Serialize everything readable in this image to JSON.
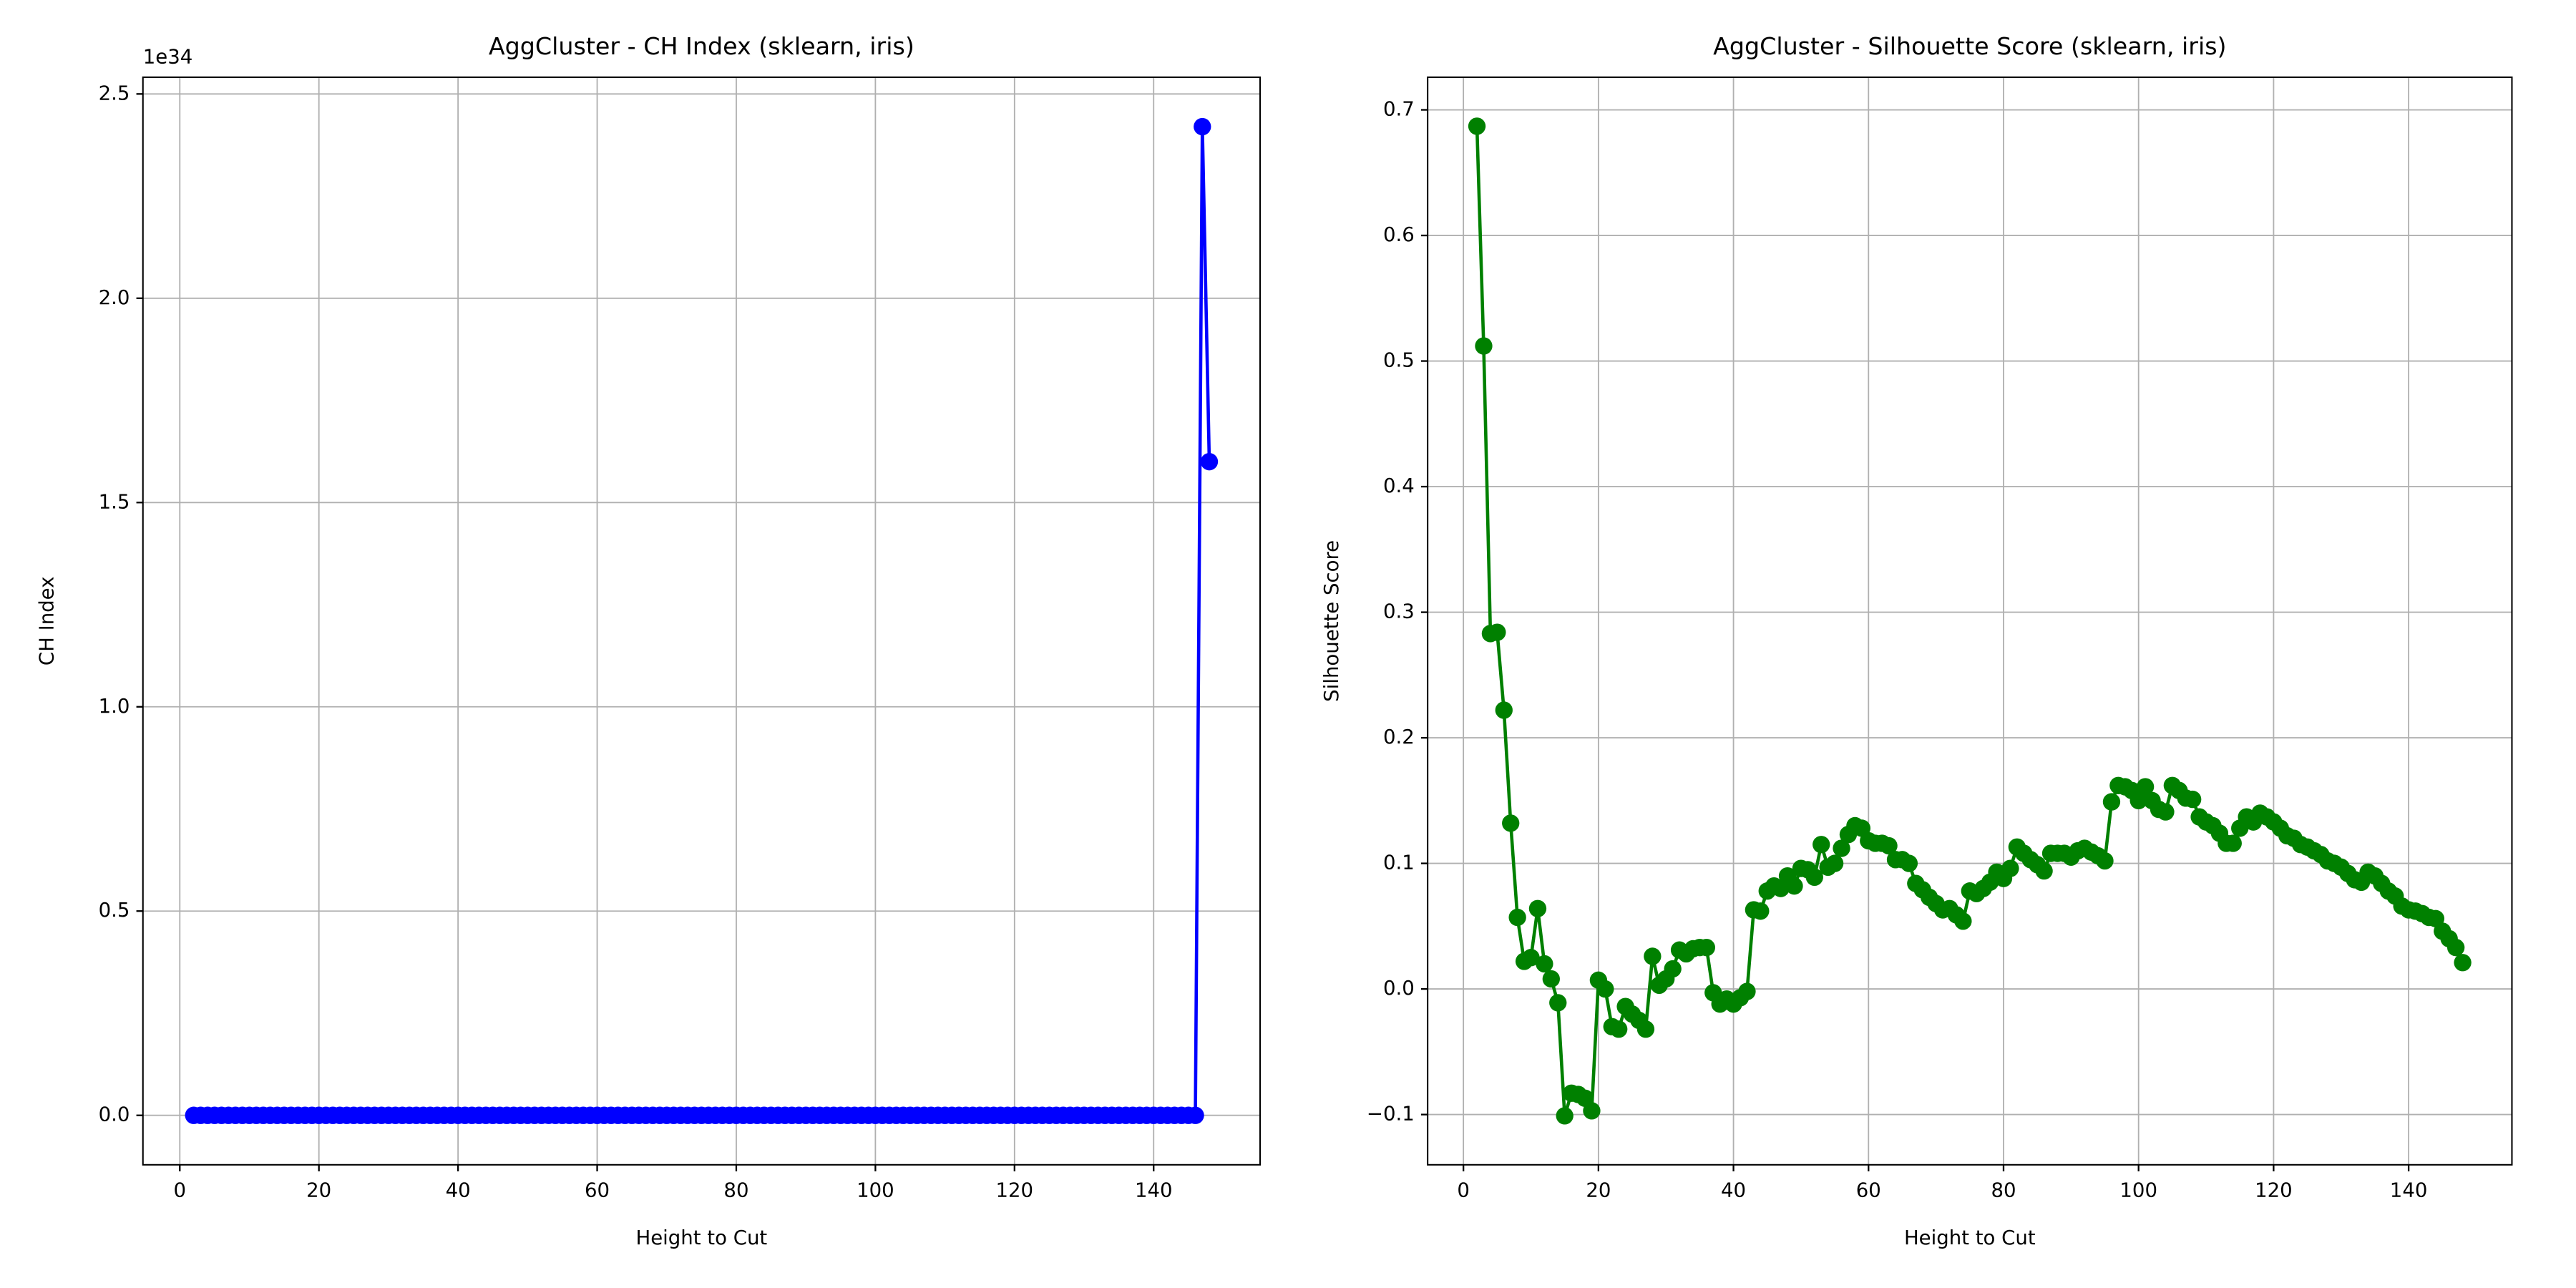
{
  "chart_data": [
    {
      "type": "line",
      "title": "AggCluster - CH Index (sklearn, iris)",
      "xlabel": "Height to Cut",
      "ylabel": "CH Index",
      "y_offset_text": "1e34",
      "color": "#0000ff",
      "grid": true,
      "marker": true,
      "xlim": [
        -5.3,
        155.3
      ],
      "xticks": [
        0,
        20,
        40,
        60,
        80,
        100,
        120,
        140
      ],
      "ylim": [
        -0.121,
        2.541
      ],
      "yticks": [
        {
          "value": 0,
          "label": "0.0"
        },
        0.5,
        {
          "value": 1,
          "label": "1.0"
        },
        1.5,
        {
          "value": 2,
          "label": "2.0"
        },
        2.5
      ],
      "x": [
        2,
        3,
        4,
        5,
        6,
        7,
        8,
        9,
        10,
        11,
        12,
        13,
        14,
        15,
        16,
        17,
        18,
        19,
        20,
        21,
        22,
        23,
        24,
        25,
        26,
        27,
        28,
        29,
        30,
        31,
        32,
        33,
        34,
        35,
        36,
        37,
        38,
        39,
        40,
        41,
        42,
        43,
        44,
        45,
        46,
        47,
        48,
        49,
        50,
        51,
        52,
        53,
        54,
        55,
        56,
        57,
        58,
        59,
        60,
        61,
        62,
        63,
        64,
        65,
        66,
        67,
        68,
        69,
        70,
        71,
        72,
        73,
        74,
        75,
        76,
        77,
        78,
        79,
        80,
        81,
        82,
        83,
        84,
        85,
        86,
        87,
        88,
        89,
        90,
        91,
        92,
        93,
        94,
        95,
        96,
        97,
        98,
        99,
        100,
        101,
        102,
        103,
        104,
        105,
        106,
        107,
        108,
        109,
        110,
        111,
        112,
        113,
        114,
        115,
        116,
        117,
        118,
        119,
        120,
        121,
        122,
        123,
        124,
        125,
        126,
        127,
        128,
        129,
        130,
        131,
        132,
        133,
        134,
        135,
        136,
        137,
        138,
        139,
        140,
        141,
        142,
        143,
        144,
        145,
        146,
        147,
        148
      ],
      "values": [
        0,
        0,
        0,
        0,
        0,
        0,
        0,
        0,
        0,
        0,
        0,
        0,
        0,
        0,
        0,
        0,
        0,
        0,
        0,
        0,
        0,
        0,
        0,
        0,
        0,
        0,
        0,
        0,
        0,
        0,
        0,
        0,
        0,
        0,
        0,
        0,
        0,
        0,
        0,
        0,
        0,
        0,
        0,
        0,
        0,
        0,
        0,
        0,
        0,
        0,
        0,
        0,
        0,
        0,
        0,
        0,
        0,
        0,
        0,
        0,
        0,
        0,
        0,
        0,
        0,
        0,
        0,
        0,
        0,
        0,
        0,
        0,
        0,
        0,
        0,
        0,
        0,
        0,
        0,
        0,
        0,
        0,
        0,
        0,
        0,
        0,
        0,
        0,
        0,
        0,
        0,
        0,
        0,
        0,
        0,
        0,
        0,
        0,
        0,
        0,
        0,
        0,
        0,
        0,
        0,
        0,
        0,
        0,
        0,
        0,
        0,
        0,
        0,
        0,
        0,
        0,
        0,
        0,
        0,
        0,
        0,
        0,
        0,
        0,
        0,
        0,
        0,
        0,
        0,
        0,
        0,
        0,
        0,
        0,
        0,
        0,
        0,
        0,
        0,
        0,
        0,
        0,
        0,
        0,
        0,
        2.42,
        1.6
      ]
    },
    {
      "type": "line",
      "title": "AggCluster - Silhouette Score (sklearn, iris)",
      "xlabel": "Height to Cut",
      "ylabel": "Silhouette Score",
      "color": "#008000",
      "grid": true,
      "marker": true,
      "xlim": [
        -5.3,
        155.3
      ],
      "xticks": [
        0,
        20,
        40,
        60,
        80,
        100,
        120,
        140
      ],
      "ylim": [
        -0.14,
        0.726
      ],
      "yticks": [
        {
          "value": -0.1,
          "label": "−0.1"
        },
        {
          "value": 0,
          "label": "0.0"
        },
        0.1,
        0.2,
        0.3,
        0.4,
        0.5,
        0.6,
        0.7
      ],
      "x": [
        2,
        3,
        4,
        5,
        6,
        7,
        8,
        9,
        10,
        11,
        12,
        13,
        14,
        15,
        16,
        17,
        18,
        19,
        20,
        21,
        22,
        23,
        24,
        25,
        26,
        27,
        28,
        29,
        30,
        31,
        32,
        33,
        34,
        35,
        36,
        37,
        38,
        39,
        40,
        41,
        42,
        43,
        44,
        45,
        46,
        47,
        48,
        49,
        50,
        51,
        52,
        53,
        54,
        55,
        56,
        57,
        58,
        59,
        60,
        61,
        62,
        63,
        64,
        65,
        66,
        67,
        68,
        69,
        70,
        71,
        72,
        73,
        74,
        75,
        76,
        77,
        78,
        79,
        80,
        81,
        82,
        83,
        84,
        85,
        86,
        87,
        88,
        89,
        90,
        91,
        92,
        93,
        94,
        95,
        96,
        97,
        98,
        99,
        100,
        101,
        102,
        103,
        104,
        105,
        106,
        107,
        108,
        109,
        110,
        111,
        112,
        113,
        114,
        115,
        116,
        117,
        118,
        119,
        120,
        121,
        122,
        123,
        124,
        125,
        126,
        127,
        128,
        129,
        130,
        131,
        132,
        133,
        134,
        135,
        136,
        137,
        138,
        139,
        140,
        141,
        142,
        143,
        144,
        145,
        146,
        147,
        148
      ],
      "values": [
        0.687,
        0.512,
        0.283,
        0.284,
        0.222,
        0.132,
        0.057,
        0.022,
        0.025,
        0.064,
        0.02,
        0.008,
        -0.011,
        -0.101,
        -0.083,
        -0.084,
        -0.087,
        -0.097,
        0.007,
        0.0,
        -0.03,
        -0.032,
        -0.014,
        -0.02,
        -0.025,
        -0.032,
        0.026,
        0.003,
        0.008,
        0.016,
        0.031,
        0.028,
        0.032,
        0.033,
        0.033,
        -0.003,
        -0.012,
        -0.008,
        -0.012,
        -0.007,
        -0.002,
        0.063,
        0.062,
        0.078,
        0.082,
        0.08,
        0.09,
        0.082,
        0.096,
        0.095,
        0.089,
        0.115,
        0.097,
        0.1,
        0.112,
        0.123,
        0.13,
        0.128,
        0.118,
        0.116,
        0.116,
        0.114,
        0.103,
        0.103,
        0.1,
        0.084,
        0.079,
        0.073,
        0.068,
        0.063,
        0.064,
        0.059,
        0.054,
        0.078,
        0.076,
        0.08,
        0.085,
        0.093,
        0.088,
        0.096,
        0.113,
        0.108,
        0.103,
        0.099,
        0.094,
        0.108,
        0.108,
        0.108,
        0.105,
        0.11,
        0.112,
        0.109,
        0.106,
        0.102,
        0.149,
        0.162,
        0.161,
        0.158,
        0.15,
        0.161,
        0.15,
        0.143,
        0.141,
        0.162,
        0.158,
        0.152,
        0.151,
        0.137,
        0.133,
        0.13,
        0.124,
        0.116,
        0.116,
        0.128,
        0.137,
        0.133,
        0.14,
        0.137,
        0.133,
        0.128,
        0.122,
        0.12,
        0.115,
        0.113,
        0.11,
        0.107,
        0.102,
        0.1,
        0.097,
        0.092,
        0.087,
        0.085,
        0.093,
        0.09,
        0.084,
        0.078,
        0.074,
        0.066,
        0.063,
        0.062,
        0.06,
        0.057,
        0.056,
        0.046,
        0.04,
        0.033,
        0.021
      ]
    }
  ]
}
